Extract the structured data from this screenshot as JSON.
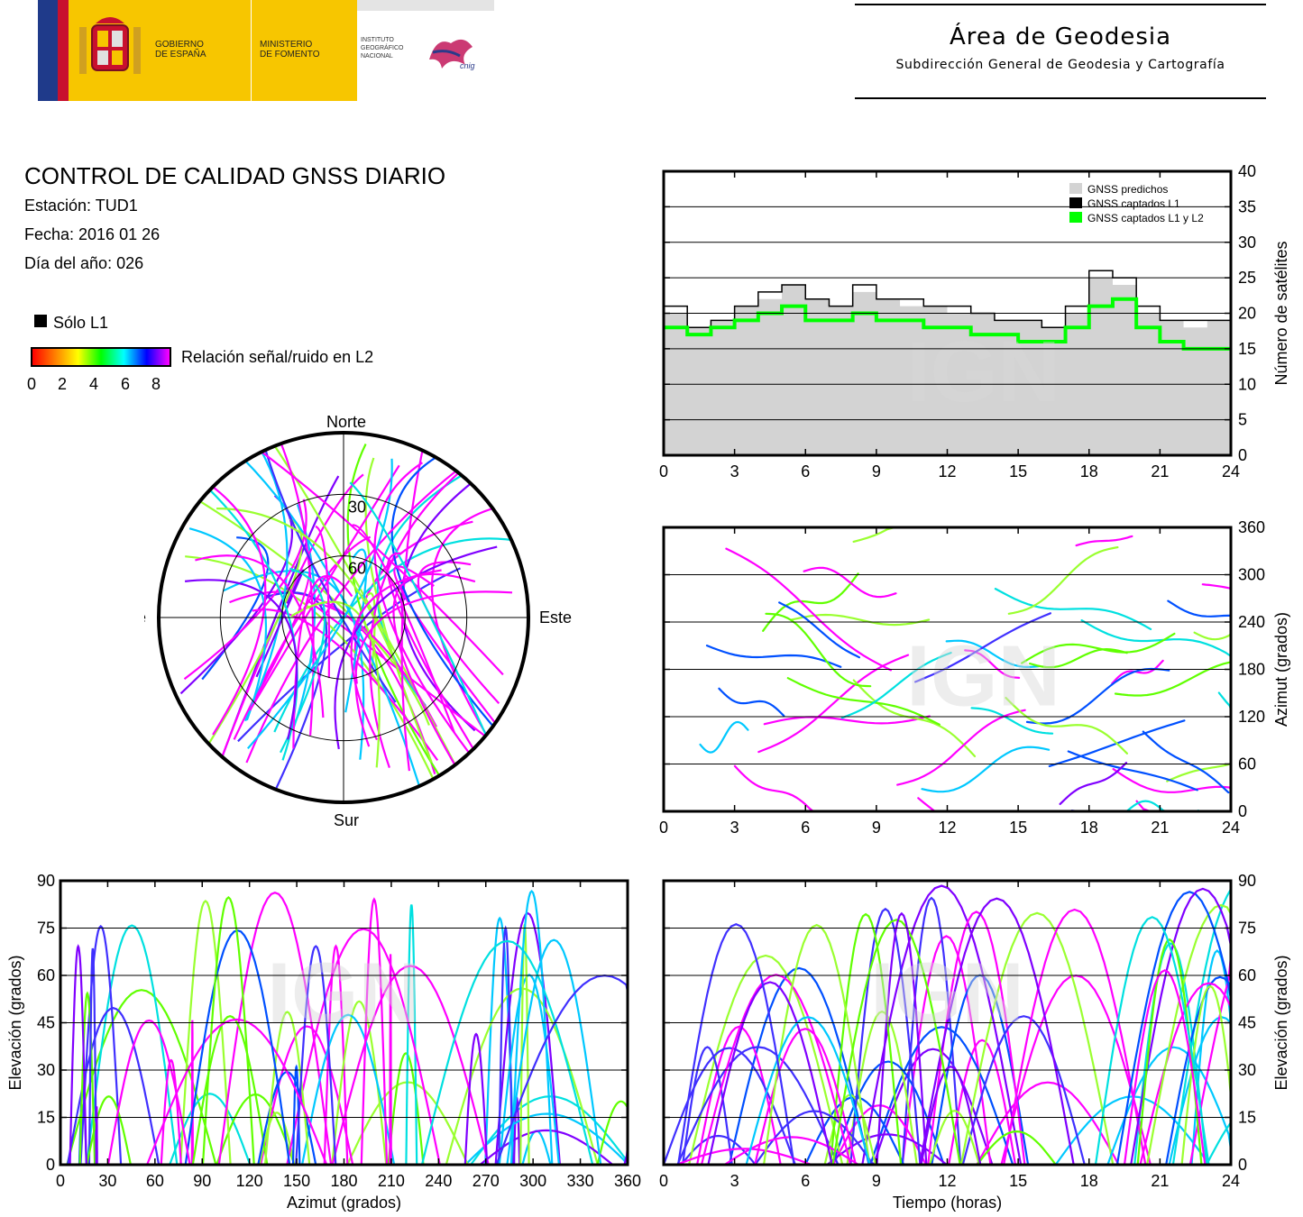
{
  "header": {
    "gov_line1": "GOBIERNO",
    "gov_line2": "DE ESPAÑA",
    "ministry_line1": "MINISTERIO",
    "ministry_line2": "DE FOMENTO",
    "ign_line1": "INSTITUTO",
    "ign_line2": "GEOGRÁFICO",
    "ign_line3": "NACIONAL",
    "cnig_logo": "cnig",
    "area_title": "Área de Geodesia",
    "area_subtitle": "Subdirección General de Geodesia y Cartografía"
  },
  "info": {
    "title": "CONTROL DE CALIDAD GNSS DIARIO",
    "station": "Estación: TUD1",
    "date": "Fecha: 2016 01 26",
    "doy": "Día del año: 026",
    "legend_l1": "Sólo L1",
    "colorbar_label": "Relación señal/ruido en L2",
    "colorbar_ticks": [
      "0",
      "2",
      "4",
      "6",
      "8"
    ],
    "colorbar_colors": [
      "#ff0000",
      "#ff8000",
      "#ffff00",
      "#00ff00",
      "#00ffff",
      "#0000ff",
      "#ff00ff"
    ]
  },
  "watermark": "IGN",
  "chart_data": [
    {
      "id": "satellite-count",
      "type": "area",
      "ylabel": "Número de satélites",
      "xlim": [
        0,
        24
      ],
      "ylim": [
        0,
        40
      ],
      "xticks": [
        "0",
        "3",
        "6",
        "9",
        "12",
        "15",
        "18",
        "21",
        "24"
      ],
      "yticks": [
        "0",
        "5",
        "10",
        "15",
        "20",
        "25",
        "30",
        "35",
        "40"
      ],
      "grid": true,
      "legend_position": "top-right",
      "x": [
        0,
        1,
        2,
        3,
        4,
        5,
        6,
        7,
        8,
        9,
        10,
        11,
        12,
        13,
        14,
        15,
        16,
        17,
        18,
        19,
        20,
        21,
        22,
        23,
        24
      ],
      "series": [
        {
          "name": "GNSS predichos",
          "color": "#d3d3d3",
          "values": [
            20,
            18,
            19,
            21,
            22,
            24,
            22,
            21,
            23,
            22,
            21,
            21,
            20,
            20,
            19,
            19,
            18,
            20,
            25,
            24,
            20,
            19,
            18,
            19,
            20
          ]
        },
        {
          "name": "GNSS captados L1",
          "color": "#000000",
          "values": [
            21,
            18,
            19,
            21,
            23,
            24,
            22,
            21,
            24,
            22,
            22,
            21,
            21,
            20,
            19,
            19,
            18,
            21,
            26,
            25,
            21,
            19,
            19,
            19,
            21
          ]
        },
        {
          "name": "GNSS captados L1 y L2",
          "color": "#00ff00",
          "values": [
            18,
            17,
            18,
            19,
            20,
            21,
            19,
            19,
            20,
            19,
            19,
            18,
            18,
            17,
            17,
            16,
            16,
            18,
            21,
            22,
            18,
            16,
            15,
            15,
            15
          ]
        }
      ]
    },
    {
      "id": "azimuth-vs-time",
      "type": "scatter",
      "ylabel": "Azimut (grados)",
      "xlim": [
        0,
        24
      ],
      "ylim": [
        0,
        360
      ],
      "xticks": [
        "0",
        "3",
        "6",
        "9",
        "12",
        "15",
        "18",
        "21",
        "24"
      ],
      "yticks": [
        "0",
        "60",
        "120",
        "180",
        "240",
        "300",
        "360"
      ],
      "grid": true
    },
    {
      "id": "skyplot",
      "type": "scatter",
      "labels": {
        "north": "Norte",
        "south": "Sur",
        "east": "Este",
        "west": "Oeste"
      },
      "rings": [
        "30",
        "60"
      ]
    },
    {
      "id": "elevation-vs-azimuth",
      "type": "scatter",
      "xlabel": "Azimut (grados)",
      "ylabel": "Elevación (grados)",
      "xlim": [
        0,
        360
      ],
      "ylim": [
        0,
        90
      ],
      "xticks": [
        "0",
        "30",
        "60",
        "90",
        "120",
        "150",
        "180",
        "210",
        "240",
        "270",
        "300",
        "330",
        "360"
      ],
      "yticks": [
        "0",
        "15",
        "30",
        "45",
        "60",
        "75",
        "90"
      ],
      "grid": true
    },
    {
      "id": "elevation-vs-time",
      "type": "scatter",
      "xlabel": "Tiempo (horas)",
      "ylabel": "Elevación (grados)",
      "xlim": [
        0,
        24
      ],
      "ylim": [
        0,
        90
      ],
      "xticks": [
        "0",
        "3",
        "6",
        "9",
        "12",
        "15",
        "18",
        "21",
        "24"
      ],
      "yticks": [
        "0",
        "15",
        "30",
        "45",
        "60",
        "75",
        "90"
      ],
      "grid": true
    }
  ]
}
